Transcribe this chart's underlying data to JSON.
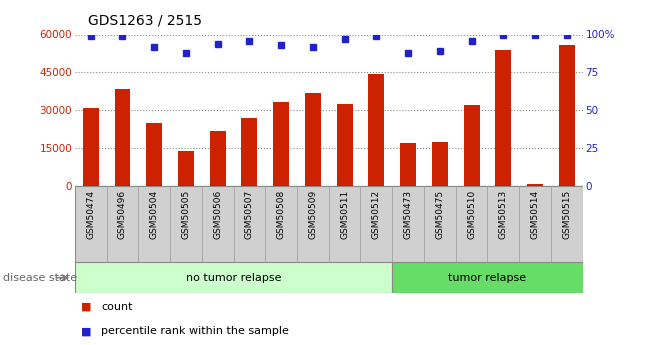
{
  "title": "GDS1263 / 2515",
  "samples": [
    "GSM50474",
    "GSM50496",
    "GSM50504",
    "GSM50505",
    "GSM50506",
    "GSM50507",
    "GSM50508",
    "GSM50509",
    "GSM50511",
    "GSM50512",
    "GSM50473",
    "GSM50475",
    "GSM50510",
    "GSM50513",
    "GSM50514",
    "GSM50515"
  ],
  "counts": [
    31000,
    38500,
    25000,
    14000,
    22000,
    27000,
    33500,
    37000,
    32500,
    44500,
    17000,
    17500,
    32000,
    54000,
    1000,
    56000
  ],
  "percentile_ranks": [
    99,
    99,
    92,
    88,
    94,
    96,
    93,
    92,
    97,
    99,
    88,
    89,
    96,
    100,
    100,
    100
  ],
  "no_tumor_count": 10,
  "tumor_count": 6,
  "bar_color": "#cc2200",
  "dot_color": "#2222cc",
  "left_axis_color": "#cc2200",
  "right_axis_color": "#2222cc",
  "ylim_left": [
    0,
    60000
  ],
  "ylim_right": [
    0,
    100
  ],
  "yticks_left": [
    0,
    15000,
    30000,
    45000,
    60000
  ],
  "yticks_right": [
    0,
    25,
    50,
    75,
    100
  ],
  "ytick_labels_right": [
    "0",
    "25",
    "50",
    "75",
    "100%"
  ],
  "no_tumor_color": "#ccffcc",
  "tumor_color": "#66dd66",
  "xtick_bg": "#d0d0d0",
  "group_label_no_tumor": "no tumor relapse",
  "group_label_tumor": "tumor relapse",
  "disease_state_label": "disease state",
  "legend_count": "count",
  "legend_percentile": "percentile rank within the sample"
}
